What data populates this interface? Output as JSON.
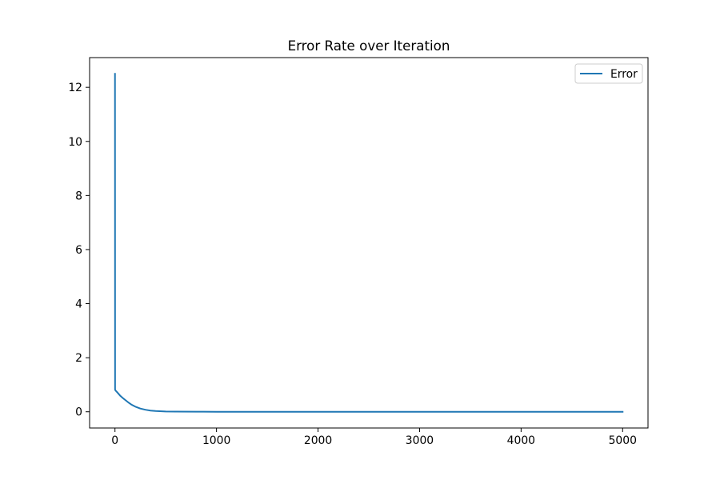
{
  "chart_data": {
    "type": "line",
    "title": "Error Rate over Iteration",
    "xlabel": "",
    "ylabel": "",
    "xlim": [
      -250,
      5250
    ],
    "ylim": [
      -0.6,
      13.1
    ],
    "xticks": [
      0,
      1000,
      2000,
      3000,
      4000,
      5000
    ],
    "yticks": [
      0,
      2,
      4,
      6,
      8,
      10,
      12
    ],
    "grid": false,
    "legend": "top-right",
    "series": [
      {
        "name": "Error",
        "color": "#1f77b4",
        "x": [
          0,
          1,
          5,
          20,
          50,
          80,
          100,
          130,
          160,
          200,
          250,
          300,
          350,
          400,
          500,
          600,
          800,
          1000,
          1500,
          2000,
          3000,
          4000,
          5000
        ],
        "y": [
          12.5,
          0.82,
          0.79,
          0.73,
          0.6,
          0.5,
          0.44,
          0.35,
          0.27,
          0.19,
          0.12,
          0.075,
          0.045,
          0.028,
          0.012,
          0.006,
          0.002,
          0.001,
          0.0005,
          0.0003,
          0.0002,
          0.0001,
          0.0001
        ]
      }
    ]
  }
}
